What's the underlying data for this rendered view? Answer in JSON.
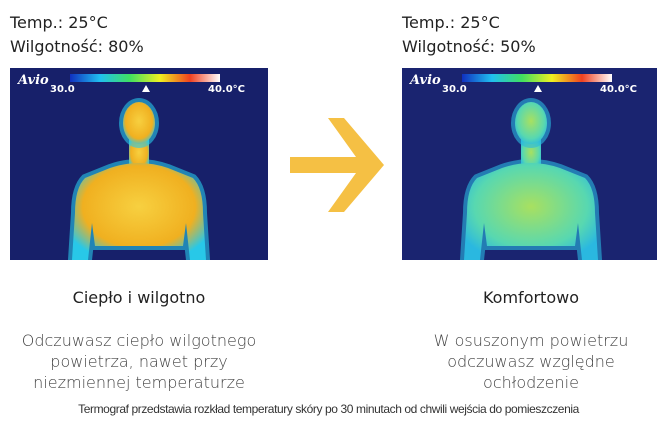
{
  "panels": [
    {
      "temperature": "Temp.: 25°C",
      "humidity": "Wilgotność: 80%",
      "image": {
        "brand": "Avio",
        "scale_min": "30.0",
        "scale_max": "40.0°C"
      },
      "title": "Ciepło i wilgotno",
      "description": [
        "Odczuwasz ciepło wilgotnego",
        "powietrza, nawet przy",
        "niezmiennej temperaturze"
      ]
    },
    {
      "temperature": "Temp.: 25°C",
      "humidity": "Wilgotność: 50%",
      "image": {
        "brand": "Avio",
        "scale_min": "30.0",
        "scale_max": "40.0°C"
      },
      "title": "Komfortowo",
      "description": [
        "W osuszonym powietrzu",
        "odczuwasz względne",
        "ochłodzenie"
      ]
    }
  ],
  "caption": "Termograf przedstawia rozkład temperatury skóry po 30 minutach od chwili wejścia do pomieszczenia"
}
